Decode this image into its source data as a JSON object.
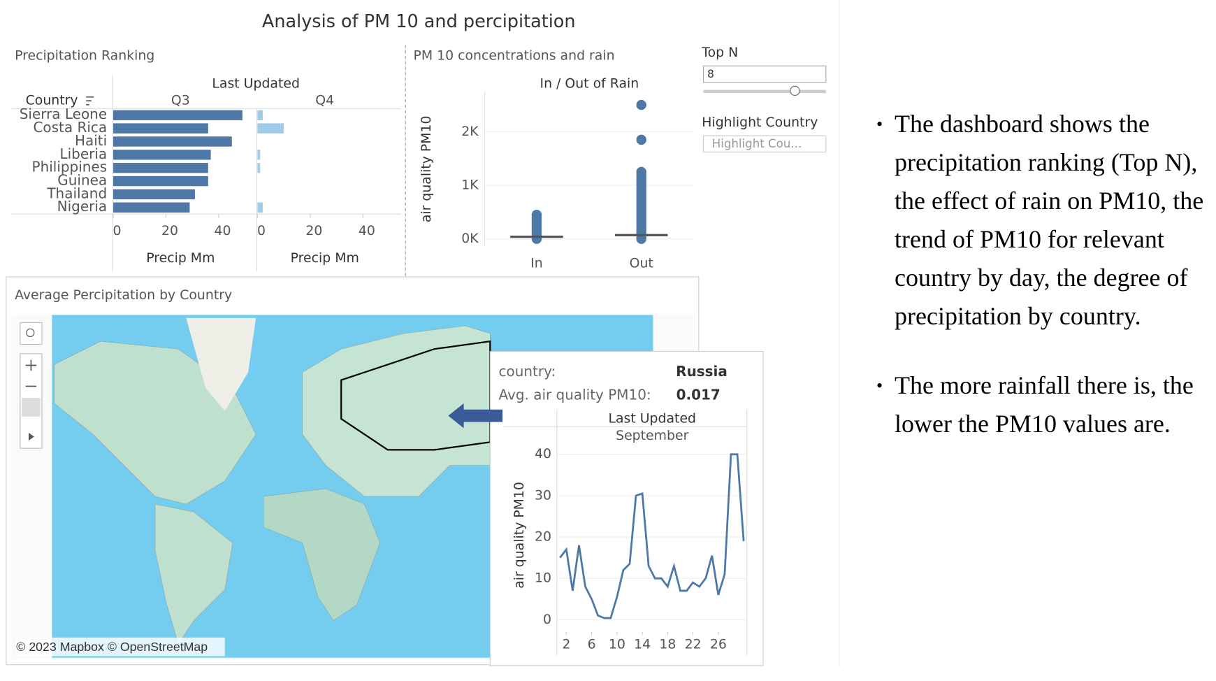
{
  "dashboard": {
    "title": "Analysis of PM 10 and percipitation",
    "map_title": "Average Percipitation by Country",
    "map_attribution": "© 2023 Mapbox © OpenStreetMap",
    "tooltip": {
      "country_label": "country:",
      "country": "Russia",
      "pm_label": "Avg. air quality PM10:",
      "pm_value": 0.017
    }
  },
  "controls": {
    "topn_label": "Top N",
    "topn_value": 8,
    "highlight_label": "Highlight Country",
    "highlight_placeholder": "Highlight Cou..."
  },
  "bullets": [
    "The dashboard shows the precipitation ranking (Top N), the effect of rain on PM10, the trend of PM10 for relevant country by day, the degree of precipitation by country.",
    "The more rainfall there is, the lower the PM10 values are."
  ],
  "chart_data": [
    {
      "type": "bar",
      "title": "Precipitation Ranking",
      "header": "Last Updated",
      "category_label": "Country",
      "x_label": "Precip Mm",
      "categories": [
        "Sierra Leone",
        "Costa Rica",
        "Haiti",
        "Liberia",
        "Philippines",
        "Guinea",
        "Thailand",
        "Nigeria"
      ],
      "series": [
        {
          "name": "Q3",
          "color": "#4e79a7",
          "values": [
            49,
            36,
            45,
            37,
            36,
            36,
            31,
            29
          ]
        },
        {
          "name": "Q4",
          "color": "#a0cbe8",
          "values": [
            2,
            10,
            0,
            1,
            1,
            0,
            0,
            2
          ]
        }
      ],
      "xlim": [
        0,
        54
      ],
      "xticks": [
        0,
        20,
        40
      ]
    },
    {
      "type": "strip",
      "title": "PM 10 concentrations and rain",
      "header": "In / Out of Rain",
      "y_label": "air quality PM10",
      "categories": [
        "In",
        "Out"
      ],
      "color": "#4e79a7",
      "median_color": "#555555",
      "points": [
        [
          0,
          50,
          100,
          150,
          200,
          250,
          300,
          350,
          400,
          450
        ],
        [
          0,
          50,
          100,
          150,
          200,
          250,
          300,
          350,
          400,
          450,
          500,
          550,
          600,
          650,
          700,
          750,
          800,
          850,
          900,
          950,
          1000,
          1050,
          1100,
          1150,
          1200,
          1250,
          1850,
          2500
        ]
      ],
      "medians": [
        40,
        70
      ],
      "ylim": [
        0,
        2750
      ],
      "yticks": [
        {
          "value": 0,
          "label": "0K"
        },
        {
          "value": 1000,
          "label": "1K"
        },
        {
          "value": 2000,
          "label": "2K"
        }
      ],
      "grid": true
    },
    {
      "type": "line",
      "header": "Last Updated",
      "subheader": "September",
      "y_label": "air quality PM10",
      "color": "#4e79a7",
      "x": [
        1,
        2,
        3,
        4,
        5,
        6,
        7,
        8,
        9,
        10,
        11,
        12,
        13,
        14,
        15,
        16,
        17,
        18,
        19,
        20,
        21,
        22,
        23,
        24,
        25,
        26,
        27,
        28,
        29,
        30
      ],
      "values": [
        15,
        17,
        7,
        18,
        8,
        5,
        1,
        0.4,
        0.4,
        5.5,
        12,
        13.5,
        30,
        30.5,
        13,
        10,
        10,
        8,
        13,
        7,
        7,
        9,
        8,
        10,
        15.5,
        6,
        11,
        40,
        40,
        19
      ],
      "xlim": [
        0.5,
        30.5
      ],
      "ylim": [
        -3,
        42
      ],
      "xticks": [
        2,
        6,
        10,
        14,
        18,
        22,
        26
      ],
      "yticks": [
        0,
        10,
        20,
        30,
        40
      ],
      "grid": true
    }
  ]
}
